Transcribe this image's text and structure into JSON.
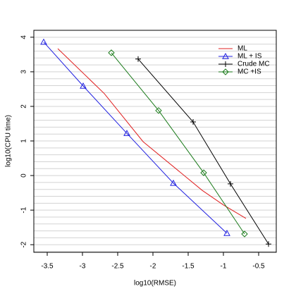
{
  "chart_data": {
    "type": "line",
    "x_label": "log10(RMSE)",
    "y_label": "log10(CPU time)",
    "xlim": [
      -3.69,
      -0.25
    ],
    "ylim": [
      -2.22,
      4.2
    ],
    "xticks": [
      -3.5,
      -3.0,
      -2.5,
      -2.0,
      -1.5,
      -1.0,
      -0.5
    ],
    "yticks": [
      -2,
      -1,
      0,
      1,
      2,
      3,
      4
    ],
    "ygrid": [
      -2.2,
      -2.0,
      -1.8,
      -1.6,
      -1.4,
      -1.2,
      -1.0,
      -0.8,
      -0.6,
      -0.4,
      -0.2,
      0,
      0.2,
      0.4,
      0.6,
      0.8,
      1.0,
      1.2,
      1.4,
      1.6,
      1.8,
      2.0,
      2.2,
      2.4,
      2.6,
      2.8,
      3.0,
      3.2,
      3.4,
      3.6,
      3.8,
      4.0
    ],
    "legend": "top-right",
    "series": [
      {
        "name": "ML",
        "color": "#e02020",
        "marker": "none",
        "x": [
          -3.35,
          -2.69,
          -2.14,
          -1.3,
          -1.0,
          -0.68
        ],
        "values": [
          3.67,
          2.37,
          0.98,
          -0.43,
          -0.85,
          -1.24
        ]
      },
      {
        "name": "ML + IS",
        "color": "#2020e0",
        "marker": "triangle",
        "x": [
          -3.55,
          -2.99,
          -2.37,
          -1.71,
          -0.95
        ],
        "values": [
          3.86,
          2.59,
          1.22,
          -0.22,
          -1.67
        ]
      },
      {
        "name": "Crude MC",
        "color": "#000000",
        "marker": "plus",
        "x": [
          -2.21,
          -1.43,
          -0.9,
          -0.36
        ],
        "values": [
          3.37,
          1.55,
          -0.24,
          -1.98
        ]
      },
      {
        "name": "MC +IS",
        "color": "#1a7a1a",
        "marker": "diamond",
        "x": [
          -2.59,
          -1.92,
          -1.28,
          -0.7
        ],
        "values": [
          3.55,
          1.88,
          0.08,
          -1.69
        ]
      }
    ]
  }
}
